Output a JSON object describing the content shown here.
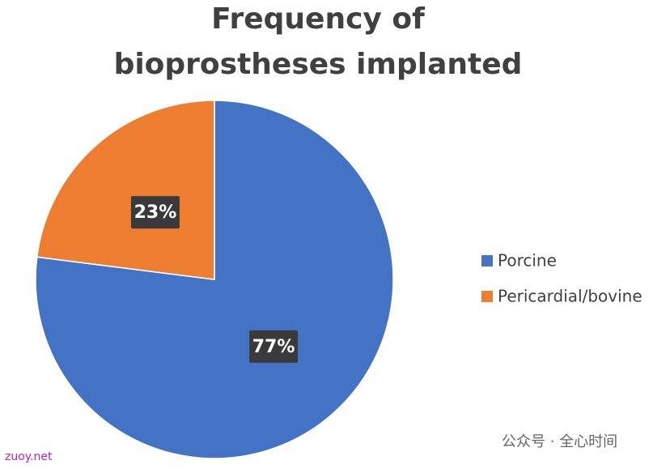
{
  "chart_data": {
    "type": "pie",
    "title": "Frequency of bioprostheses implanted",
    "categories": [
      "Porcine",
      "Pericardial/bovine"
    ],
    "values": [
      77,
      23
    ],
    "value_labels": [
      "77%",
      "23%"
    ],
    "colors": [
      "#4472c4",
      "#ed7d31"
    ],
    "legend": "right"
  },
  "watermarks": [
    "zuoy.net",
    "公众号 · 全心时间"
  ]
}
